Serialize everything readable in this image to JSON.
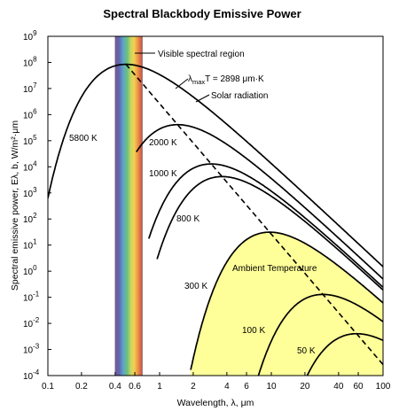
{
  "chart_data": {
    "type": "line",
    "title": "Spectral Blackbody Emissive Power",
    "xlabel": "Wavelength, λ, μm",
    "ylabel": "Spectral emissive power, Eλ, b, W/m²·μm",
    "x_scale": "log",
    "y_scale": "log",
    "xlim": [
      0.1,
      100
    ],
    "ylim": [
      0.0001,
      1000000000
    ],
    "x_ticks": [
      {
        "value": 0.1,
        "label": "0.1"
      },
      {
        "value": 0.2,
        "label": "0.2"
      },
      {
        "value": 0.4,
        "label": "0.4"
      },
      {
        "value": 0.6,
        "label": "0.6"
      },
      {
        "value": 1,
        "label": "1"
      },
      {
        "value": 2,
        "label": "2"
      },
      {
        "value": 4,
        "label": "4"
      },
      {
        "value": 6,
        "label": "6"
      },
      {
        "value": 10,
        "label": "10"
      },
      {
        "value": 20,
        "label": "20"
      },
      {
        "value": 40,
        "label": "40"
      },
      {
        "value": 60,
        "label": "60"
      },
      {
        "value": 100,
        "label": "100"
      }
    ],
    "y_ticks": [
      {
        "exp": -4,
        "base": "10",
        "sup": "-4"
      },
      {
        "exp": -3,
        "base": "10",
        "sup": "-3"
      },
      {
        "exp": -2,
        "base": "10",
        "sup": "-2"
      },
      {
        "exp": -1,
        "base": "10",
        "sup": "-1"
      },
      {
        "exp": 0,
        "base": "10",
        "sup": "0"
      },
      {
        "exp": 1,
        "base": "10",
        "sup": "1"
      },
      {
        "exp": 2,
        "base": "10",
        "sup": "2"
      },
      {
        "exp": 3,
        "base": "10",
        "sup": "3"
      },
      {
        "exp": 4,
        "base": "10",
        "sup": "4"
      },
      {
        "exp": 5,
        "base": "10",
        "sup": "5"
      },
      {
        "exp": 6,
        "base": "10",
        "sup": "6"
      },
      {
        "exp": 7,
        "base": "10",
        "sup": "7"
      },
      {
        "exp": 8,
        "base": "10",
        "sup": "8"
      },
      {
        "exp": 9,
        "base": "10",
        "sup": "9"
      }
    ],
    "visible_band": {
      "from": 0.4,
      "to": 0.7,
      "label": "Visible spectral region"
    },
    "ambient_band_label": "Ambient Temperature",
    "series": [
      {
        "name": "5800 K",
        "label": "5800 K",
        "temperature": 5800,
        "xmin": 0.1,
        "xmax": 100
      },
      {
        "name": "2000 K",
        "label": "2000 K",
        "temperature": 2000,
        "xmin": 0.62,
        "xmax": 100
      },
      {
        "name": "1000 K",
        "label": "1000 K",
        "temperature": 1000,
        "xmin": 0.8,
        "xmax": 100
      },
      {
        "name": "800 K",
        "label": "800 K",
        "temperature": 800,
        "xmin": 0.95,
        "xmax": 100
      },
      {
        "name": "300 K",
        "label": "300 K",
        "temperature": 300,
        "xmin": 1.9,
        "xmax": 100
      },
      {
        "name": "100 K",
        "label": "100 K",
        "temperature": 100,
        "xmin": 6,
        "xmax": 100
      },
      {
        "name": "50 K",
        "label": "50 K",
        "temperature": 50,
        "xmin": 11,
        "xmax": 100
      }
    ],
    "wien_line": {
      "label_prefix": "λ",
      "label_sub": "max",
      "label_suffix": "T = 2898 μm·K",
      "constant": 2898,
      "t_from": 5800,
      "t_to": 29
    },
    "annotations": {
      "solar": "Solar radiation",
      "visible": "Visible spectral region"
    },
    "colors": {
      "ambient_fill": "#ffff99",
      "curve": "#000000",
      "wien": "#000000"
    }
  }
}
